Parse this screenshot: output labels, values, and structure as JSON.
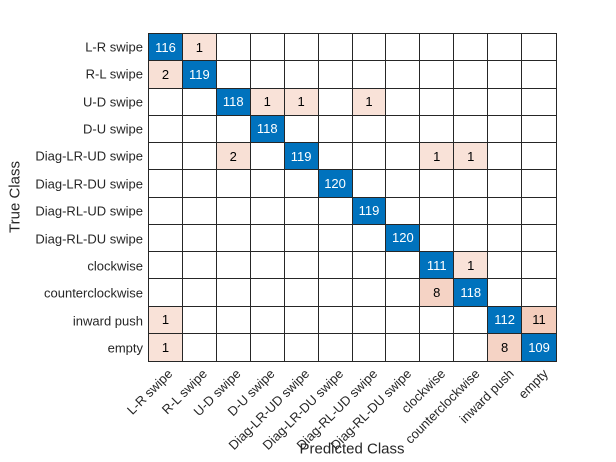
{
  "chart_data": {
    "type": "heatmap",
    "subtype": "confusion-matrix",
    "xlabel": "Predicted Class",
    "ylabel": "True Class",
    "classes": [
      "L-R swipe",
      "R-L swipe",
      "U-D swipe",
      "D-U swipe",
      "Diag-LR-UD swipe",
      "Diag-LR-DU swipe",
      "Diag-RL-UD swipe",
      "Diag-RL-DU swipe",
      "clockwise",
      "counterclockwise",
      "inward push",
      "empty"
    ],
    "matrix": [
      [
        116,
        1,
        0,
        0,
        0,
        0,
        0,
        0,
        0,
        0,
        0,
        0
      ],
      [
        2,
        119,
        0,
        0,
        0,
        0,
        0,
        0,
        0,
        0,
        0,
        0
      ],
      [
        0,
        0,
        118,
        1,
        1,
        0,
        1,
        0,
        0,
        0,
        0,
        0
      ],
      [
        0,
        0,
        0,
        118,
        0,
        0,
        0,
        0,
        0,
        0,
        0,
        0
      ],
      [
        0,
        0,
        2,
        0,
        119,
        0,
        0,
        0,
        1,
        1,
        0,
        0
      ],
      [
        0,
        0,
        0,
        0,
        0,
        120,
        0,
        0,
        0,
        0,
        0,
        0
      ],
      [
        0,
        0,
        0,
        0,
        0,
        0,
        119,
        0,
        0,
        0,
        0,
        0
      ],
      [
        0,
        0,
        0,
        0,
        0,
        0,
        0,
        120,
        0,
        0,
        0,
        0
      ],
      [
        0,
        0,
        0,
        0,
        0,
        0,
        0,
        0,
        111,
        1,
        0,
        0
      ],
      [
        0,
        0,
        0,
        0,
        0,
        0,
        0,
        0,
        8,
        118,
        0,
        0
      ],
      [
        1,
        0,
        0,
        0,
        0,
        0,
        0,
        0,
        0,
        0,
        112,
        11
      ],
      [
        1,
        0,
        0,
        0,
        0,
        0,
        0,
        0,
        0,
        0,
        8,
        109
      ]
    ],
    "colors": {
      "diagonal": "#0072BD",
      "off_diagonal_base": "#D95319",
      "zero_cell": "#FFFFFF",
      "grid_line": "#262626",
      "diagonal_text": "#FFFFFF",
      "off_diagonal_text": "#000000",
      "label_text": "#262626",
      "background": "#FFFFFF"
    },
    "layout": {
      "x_tick_rotation_deg": 45,
      "grid_on": true,
      "legend": "none"
    }
  }
}
